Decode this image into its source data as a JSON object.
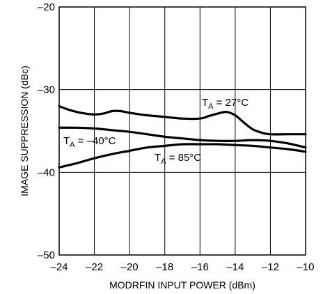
{
  "chart_data": {
    "type": "line",
    "title": "",
    "xlabel": "MODRFIN INPUT POWER (dBm)",
    "ylabel": "IMAGE SUPPRESSION (dBc)",
    "xlim": [
      -24,
      -10
    ],
    "ylim": [
      -50,
      -20
    ],
    "grid": true,
    "x_ticks": [
      -24,
      -22,
      -20,
      -18,
      -16,
      -14,
      -12,
      -10
    ],
    "x_tick_labels": [
      "–24",
      "–22",
      "–20",
      "–18",
      "–16",
      "–14",
      "–12",
      "–10"
    ],
    "y_ticks": [
      -50,
      -40,
      -30,
      -20
    ],
    "y_tick_labels": [
      "–50",
      "–40",
      "–30",
      "–20"
    ],
    "series": [
      {
        "label_main": "T",
        "label_sub": "A",
        "label_rest": " = 27°C",
        "x": [
          -24,
          -23.5,
          -23,
          -22.5,
          -22,
          -21.5,
          -21,
          -20.5,
          -20,
          -19,
          -18,
          -17,
          -16,
          -15.5,
          -15,
          -14.5,
          -14,
          -13.5,
          -13,
          -12.5,
          -12,
          -11,
          -10.5,
          -10
        ],
        "y": [
          -32.0,
          -32.4,
          -32.7,
          -32.9,
          -33.0,
          -32.9,
          -32.6,
          -32.6,
          -32.8,
          -33.1,
          -33.3,
          -33.5,
          -33.5,
          -33.2,
          -32.9,
          -32.7,
          -33.1,
          -34.0,
          -34.8,
          -35.2,
          -35.4,
          -35.4,
          -35.4,
          -35.4
        ]
      },
      {
        "label_main": "T",
        "label_sub": "A",
        "label_rest": " = –40°C",
        "x": [
          -24,
          -23,
          -22,
          -21,
          -20,
          -19,
          -18,
          -17,
          -16,
          -15,
          -14,
          -13,
          -12,
          -11,
          -10
        ],
        "y": [
          -34.6,
          -34.6,
          -34.7,
          -34.9,
          -35.1,
          -35.4,
          -35.7,
          -35.9,
          -36.1,
          -36.2,
          -36.2,
          -36.1,
          -36.2,
          -36.5,
          -37.0
        ]
      },
      {
        "label_main": "T",
        "label_sub": "A",
        "label_rest": " = 85°C",
        "x": [
          -24,
          -23,
          -22,
          -21,
          -20,
          -19,
          -18,
          -17,
          -16,
          -15,
          -14,
          -13,
          -12,
          -11,
          -10
        ],
        "y": [
          -39.4,
          -38.9,
          -38.3,
          -37.8,
          -37.4,
          -37.0,
          -36.8,
          -36.6,
          -36.6,
          -36.6,
          -36.7,
          -36.8,
          -37.0,
          -37.2,
          -37.5
        ]
      }
    ]
  }
}
